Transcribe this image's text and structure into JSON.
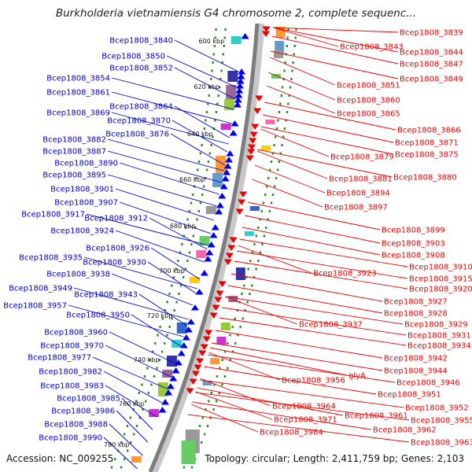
{
  "title": "Burkholderia vietnamiensis G4 chromosome 2, complete sequenc...",
  "footer": {
    "accession": "Accession: NC_009255",
    "summary": "Topology: circular; Length: 2,411,759 bp; Genes: 2,103"
  },
  "colors": {
    "forward_label": "#0000cc",
    "reverse_label": "#ee0000",
    "forward_arrow": "#0000ee",
    "reverse_arrow": "#ee0000",
    "backbone": "#8a8a8a",
    "dots": "#2e8b2e"
  },
  "kbp_ticks": [
    "600 kbp",
    "620 kbp",
    "640 kbp",
    "660 kbp",
    "680 kbp",
    "700 kbp",
    "720 kbp",
    "740 kbp",
    "760 kbp",
    "780 kbp"
  ],
  "left_genes": [
    "Bcep1808_3840",
    "Bcep1808_3850",
    "Bcep1808_3852",
    "Bcep1808_3854",
    "Bcep1808_3861",
    "Bcep1808_3864",
    "Bcep1808_3869",
    "Bcep1808_3870",
    "Bcep1808_3876",
    "Bcep1808_3882",
    "Bcep1808_3887",
    "Bcep1808_3890",
    "Bcep1808_3895",
    "Bcep1808_3901",
    "Bcep1808_3907",
    "Bcep1808_3917",
    "Bcep1808_3912",
    "Bcep1808_3924",
    "Bcep1808_3926",
    "Bcep1808_3935",
    "Bcep1808_3930",
    "Bcep1808_3938",
    "Bcep1808_3949",
    "Bcep1808_3943",
    "Bcep1808_3957",
    "Bcep1808_3950",
    "Bcep1808_3960",
    "Bcep1808_3970",
    "Bcep1808_3977",
    "Bcep1808_3982",
    "Bcep1808_3983",
    "Bcep1808_3985",
    "Bcep1808_3986",
    "Bcep1808_3988",
    "Bcep1808_3990"
  ],
  "right_genes": [
    "Bcep1808_3839",
    "Bcep1808_3843",
    "Bcep1808_3844",
    "Bcep1808_3847",
    "Bcep1808_3849",
    "Bcep1808_3851",
    "Bcep1808_3860",
    "Bcep1808_3865",
    "Bcep1808_3866",
    "Bcep1808_3871",
    "Bcep1808_3879",
    "Bcep1808_3875",
    "Bcep1808_3881",
    "Bcep1808_3880",
    "Bcep1808_3894",
    "Bcep1808_3897",
    "Bcep1808_3899",
    "Bcep1808_3903",
    "Bcep1808_3908",
    "Bcep1808_3910",
    "Bcep1808_3923",
    "Bcep1808_3915",
    "Bcep1808_3920",
    "Bcep1808_3927",
    "Bcep1808_3928",
    "Bcep1808_3929",
    "Bcep1808_3937",
    "Bcep1808_3931",
    "Bcep1808_3934",
    "Bcep1808_3942",
    "Bcep1808_3944",
    "glyA",
    "Bcep1808_3956",
    "Bcep1808_3946",
    "Bcep1808_3951",
    "Bcep1808_3964",
    "Bcep1808_3952",
    "Bcep1808_3961",
    "Bcep1808_3971",
    "Bcep1808_3955",
    "Bcep1808_3962",
    "Bcep1808_3984",
    "Bcep1808_3963"
  ]
}
